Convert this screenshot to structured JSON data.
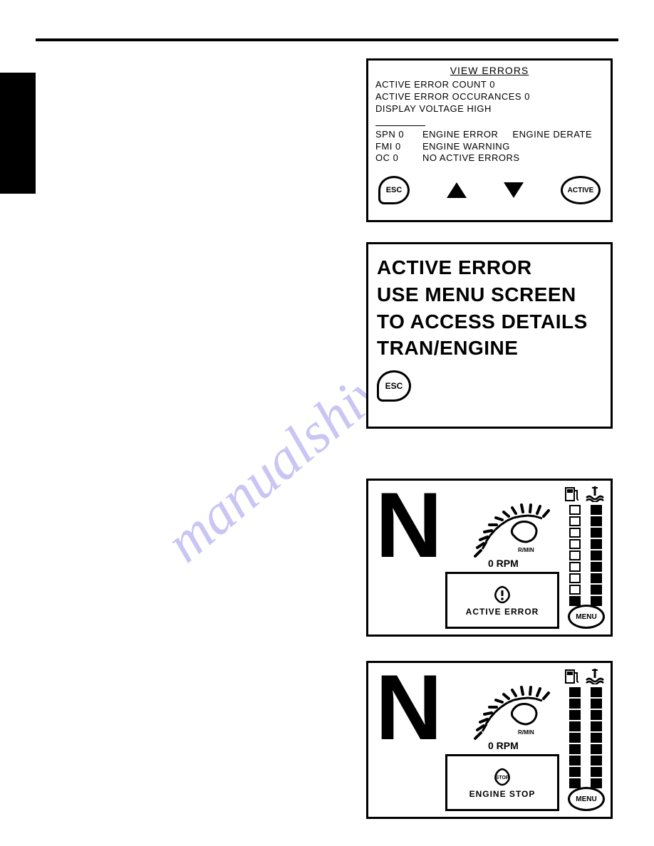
{
  "watermark": "manualshive.com",
  "panel1": {
    "title": "VIEW ERRORS",
    "line1": "ACTIVE ERROR COUNT 0",
    "line2": "ACTIVE ERROR OCCURANCES 0",
    "line3": "DISPLAY VOLTAGE HIGH",
    "spn": "SPN 0",
    "fmi": "FMI 0",
    "oc": "OC 0",
    "eng_error": "ENGINE ERROR",
    "eng_derate": "ENGINE DERATE",
    "eng_warning": "ENGINE WARNING",
    "no_active": "NO ACTIVE ERRORS",
    "esc": "ESC",
    "active": "ACTIVE"
  },
  "panel2": {
    "l1": "ACTIVE ERROR",
    "l2": "USE MENU SCREEN",
    "l3": "TO ACCESS DETAILS",
    "l4": "TRAN/ENGINE",
    "esc": "ESC"
  },
  "panel3": {
    "gear": "N",
    "rpm_value": "0 RPM",
    "rmin": "R/MIN",
    "alert": "ACTIVE ERROR",
    "menu": "MENU",
    "bar1_segments": 9,
    "bar1_filled": 1,
    "bar2_segments": 9,
    "bar2_filled": 9
  },
  "panel4": {
    "gear": "N",
    "rpm_value": "0 RPM",
    "rmin": "R/MIN",
    "stop": "STOP",
    "alert": "ENGINE STOP",
    "menu": "MENU",
    "bar1_segments": 9,
    "bar1_filled": 9,
    "bar2_segments": 9,
    "bar2_filled": 9
  },
  "colors": {
    "black": "#000000",
    "white": "#ffffff",
    "watermark": "#8a7fe8"
  }
}
